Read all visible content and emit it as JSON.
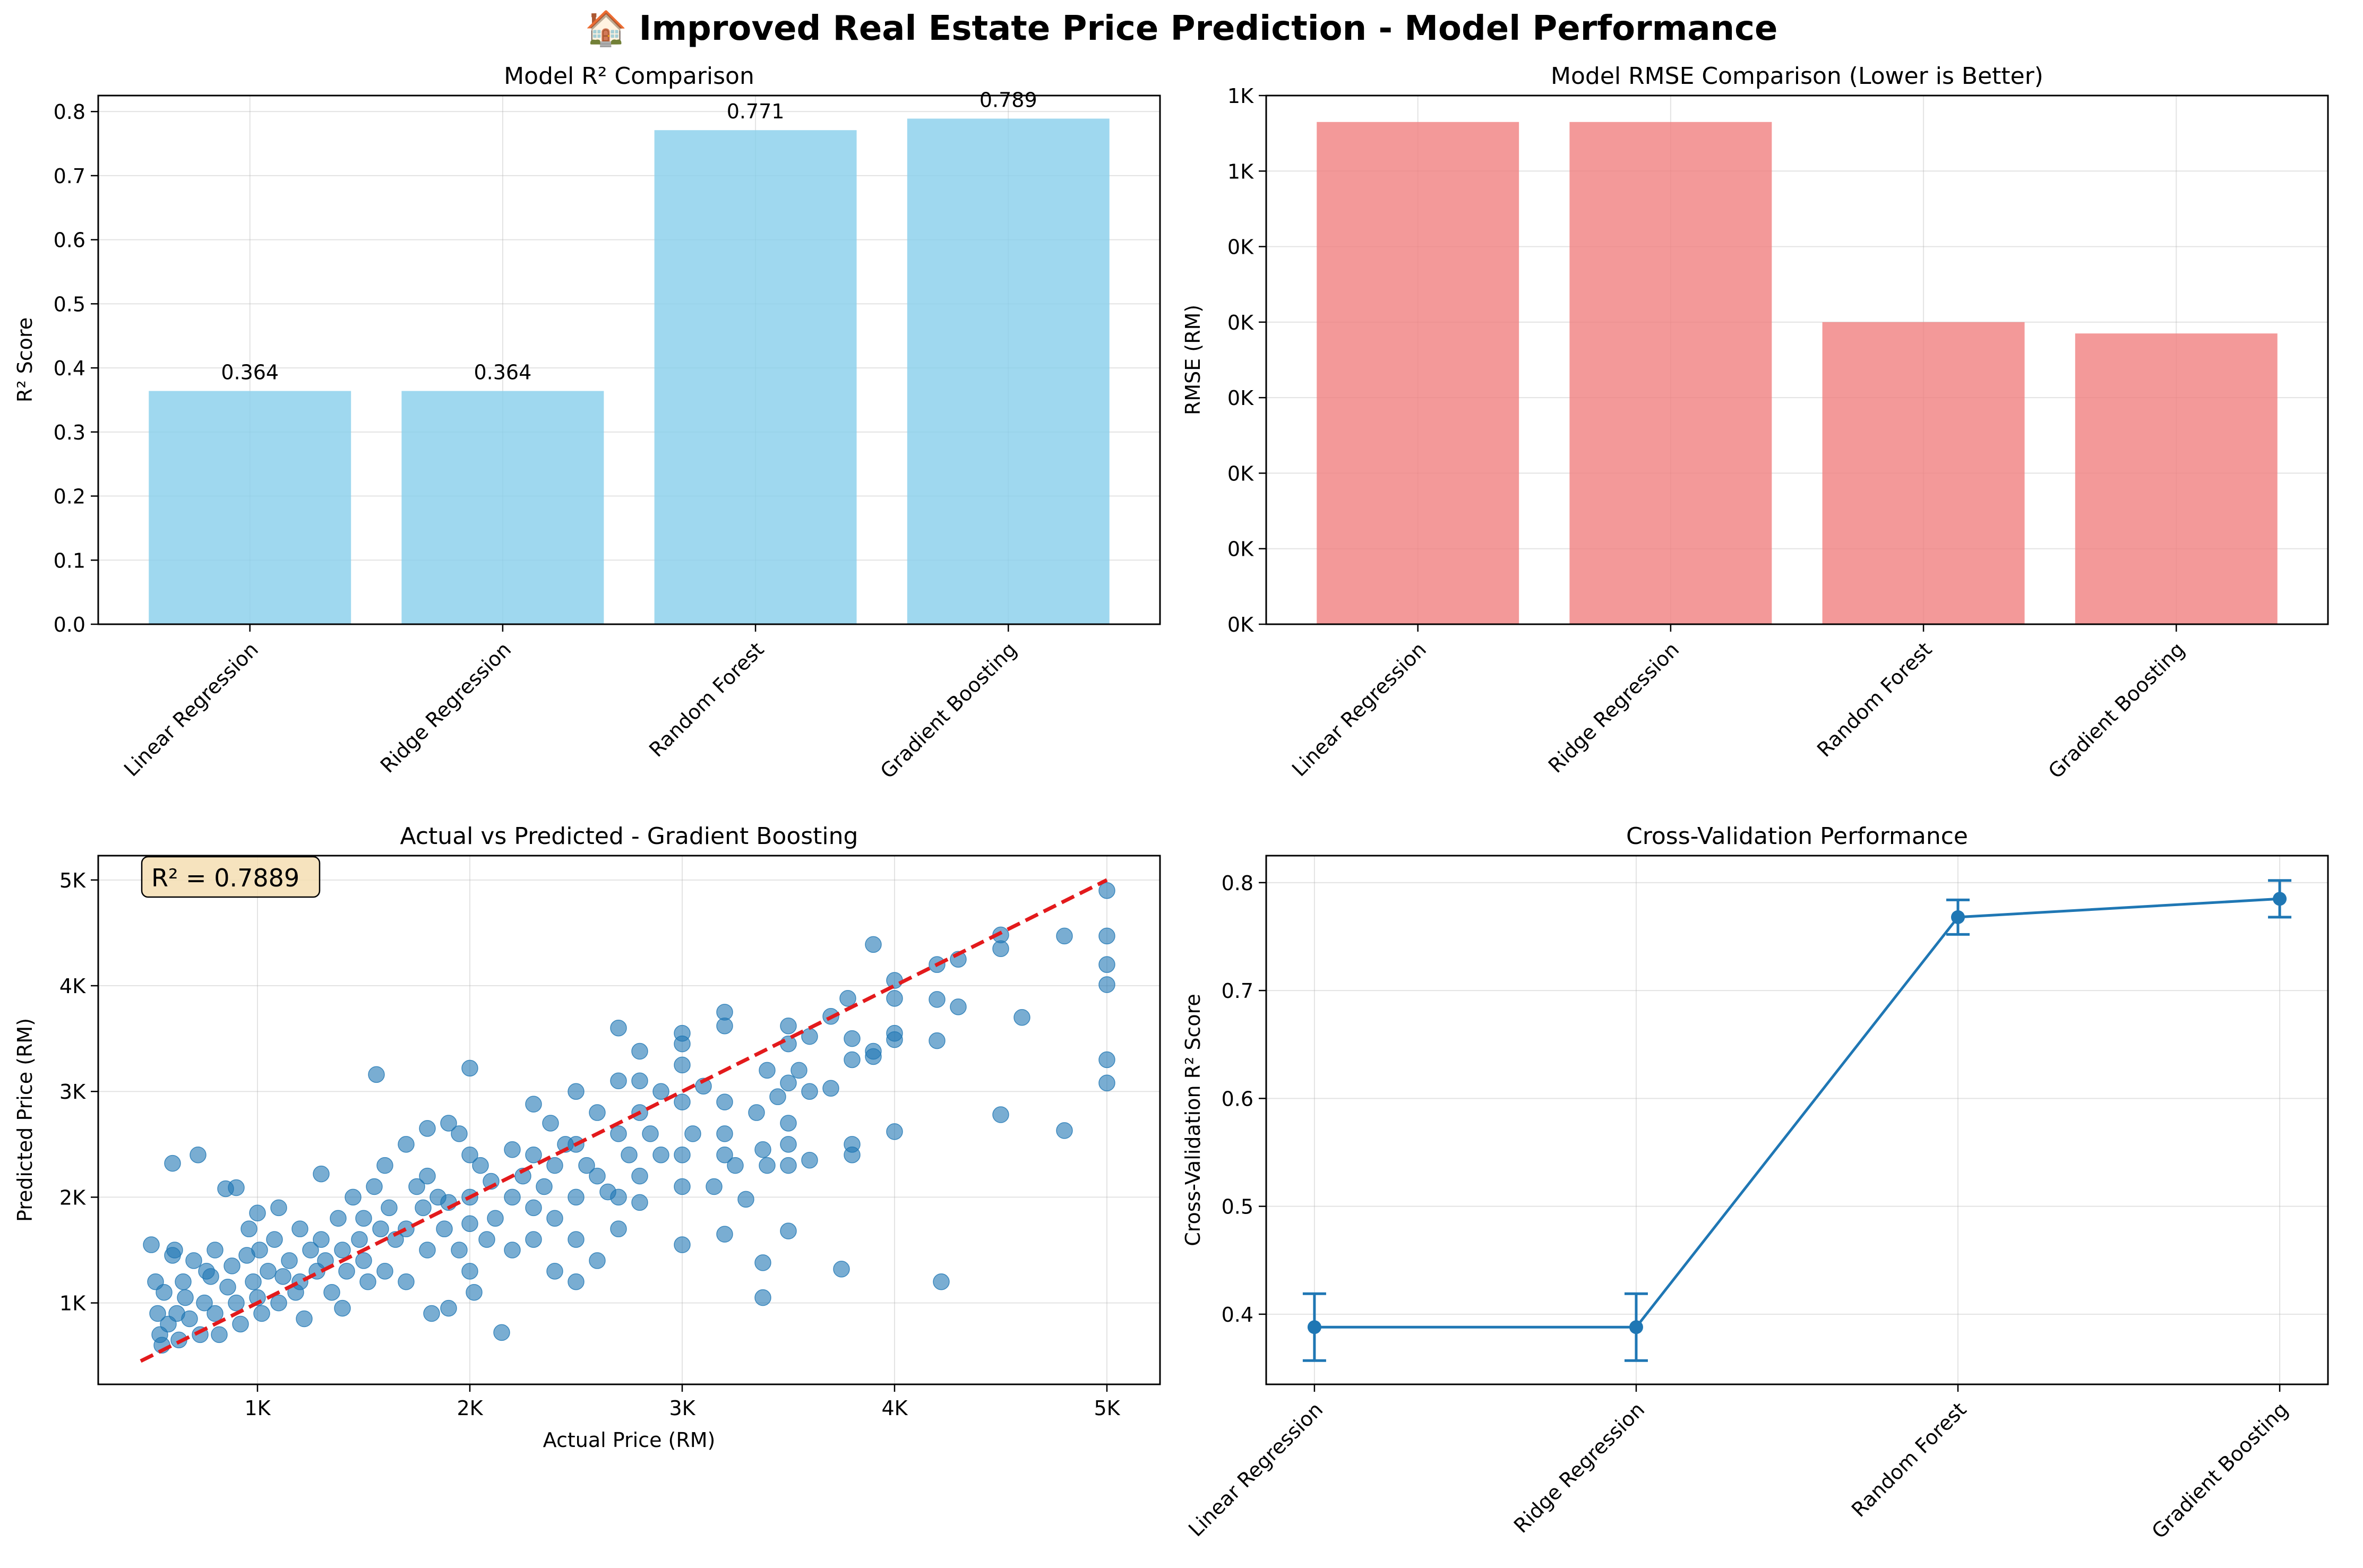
{
  "figure": {
    "title": "🏠 Improved Real Estate Price Prediction - Model Performance"
  },
  "colors": {
    "r2_bar": "#87CEEB",
    "rmse_bar": "#F08080",
    "scatter": "#1f77b4",
    "ideal_line": "#e31a1c",
    "cv_line": "#1f77b4",
    "annotation_box": "#F5DEB3",
    "grid": "#b0b0b0"
  },
  "chart_data": [
    {
      "id": "r2",
      "type": "bar",
      "title": "Model R² Comparison",
      "xlabel": "",
      "ylabel": "R² Score",
      "categories": [
        "Linear Regression",
        "Ridge Regression",
        "Random Forest",
        "Gradient Boosting"
      ],
      "values": [
        0.364,
        0.364,
        0.771,
        0.789
      ],
      "value_labels": [
        "0.364",
        "0.364",
        "0.771",
        "0.789"
      ],
      "ylim": [
        0,
        0.825
      ],
      "yticks": [
        0.0,
        0.1,
        0.2,
        0.3,
        0.4,
        0.5,
        0.6,
        0.7,
        0.8
      ],
      "ytick_labels": [
        "0.0",
        "0.1",
        "0.2",
        "0.3",
        "0.4",
        "0.5",
        "0.6",
        "0.7",
        "0.8"
      ],
      "grid": true
    },
    {
      "id": "rmse",
      "type": "bar",
      "title": "Model RMSE Comparison (Lower is Better)",
      "xlabel": "",
      "ylabel": "RMSE (RM)",
      "categories": [
        "Linear Regression",
        "Ridge Regression",
        "Random Forest",
        "Gradient Boosting"
      ],
      "values": [
        665,
        665,
        400,
        385
      ],
      "ylim": [
        0,
        700
      ],
      "yticks": [
        0,
        100,
        200,
        300,
        400,
        500,
        600,
        700
      ],
      "ytick_labels": [
        "0K",
        "0K",
        "0K",
        "0K",
        "0K",
        "0K",
        "1K",
        "1K"
      ],
      "grid": true
    },
    {
      "id": "scatter",
      "type": "scatter",
      "title": "Actual vs Predicted - Gradient Boosting",
      "xlabel": "Actual Price (RM)",
      "ylabel": "Predicted Price (RM)",
      "xlim": [
        250,
        5250
      ],
      "ylim": [
        230,
        5230
      ],
      "xticks": [
        1000,
        2000,
        3000,
        4000,
        5000
      ],
      "xtick_labels": [
        "1K",
        "2K",
        "3K",
        "4K",
        "5K"
      ],
      "yticks": [
        1000,
        2000,
        3000,
        4000,
        5000
      ],
      "ytick_labels": [
        "1K",
        "2K",
        "3K",
        "4K",
        "5K"
      ],
      "ideal_line": [
        [
          450,
          450
        ],
        [
          5000,
          5000
        ]
      ],
      "annotation": "R² = 0.7889",
      "grid": true,
      "points": [
        [
          500,
          1550
        ],
        [
          520,
          1200
        ],
        [
          530,
          900
        ],
        [
          540,
          700
        ],
        [
          550,
          600
        ],
        [
          560,
          1100
        ],
        [
          580,
          800
        ],
        [
          600,
          1450
        ],
        [
          600,
          2320
        ],
        [
          610,
          1500
        ],
        [
          620,
          900
        ],
        [
          630,
          650
        ],
        [
          650,
          1200
        ],
        [
          660,
          1050
        ],
        [
          680,
          850
        ],
        [
          700,
          1400
        ],
        [
          720,
          2400
        ],
        [
          730,
          700
        ],
        [
          750,
          1000
        ],
        [
          760,
          1300
        ],
        [
          780,
          1250
        ],
        [
          800,
          1500
        ],
        [
          800,
          900
        ],
        [
          820,
          700
        ],
        [
          850,
          2080
        ],
        [
          860,
          1150
        ],
        [
          880,
          1350
        ],
        [
          900,
          2090
        ],
        [
          900,
          1000
        ],
        [
          920,
          800
        ],
        [
          950,
          1450
        ],
        [
          960,
          1700
        ],
        [
          980,
          1200
        ],
        [
          1000,
          1850
        ],
        [
          1000,
          1050
        ],
        [
          1010,
          1500
        ],
        [
          1020,
          900
        ],
        [
          1050,
          1300
        ],
        [
          1080,
          1600
        ],
        [
          1100,
          1900
        ],
        [
          1100,
          1000
        ],
        [
          1120,
          1250
        ],
        [
          1150,
          1400
        ],
        [
          1180,
          1100
        ],
        [
          1200,
          1700
        ],
        [
          1200,
          1200
        ],
        [
          1220,
          850
        ],
        [
          1250,
          1500
        ],
        [
          1280,
          1300
        ],
        [
          1300,
          2220
        ],
        [
          1300,
          1600
        ],
        [
          1320,
          1400
        ],
        [
          1350,
          1100
        ],
        [
          1380,
          1800
        ],
        [
          1400,
          1500
        ],
        [
          1400,
          950
        ],
        [
          1420,
          1300
        ],
        [
          1450,
          2000
        ],
        [
          1480,
          1600
        ],
        [
          1500,
          1800
        ],
        [
          1500,
          1400
        ],
        [
          1520,
          1200
        ],
        [
          1550,
          2100
        ],
        [
          1560,
          3160
        ],
        [
          1580,
          1700
        ],
        [
          1600,
          2300
        ],
        [
          1600,
          1300
        ],
        [
          1620,
          1900
        ],
        [
          1650,
          1600
        ],
        [
          1700,
          2500
        ],
        [
          1700,
          1700
        ],
        [
          1700,
          1200
        ],
        [
          1750,
          2100
        ],
        [
          1780,
          1900
        ],
        [
          1800,
          2650
        ],
        [
          1800,
          2200
        ],
        [
          1800,
          1500
        ],
        [
          1820,
          900
        ],
        [
          1850,
          2000
        ],
        [
          1880,
          1700
        ],
        [
          1900,
          2700
        ],
        [
          1900,
          1950
        ],
        [
          1900,
          950
        ],
        [
          1950,
          2600
        ],
        [
          1950,
          1500
        ],
        [
          2000,
          3220
        ],
        [
          2000,
          2400
        ],
        [
          2000,
          2000
        ],
        [
          2000,
          1750
        ],
        [
          2000,
          1300
        ],
        [
          2020,
          1100
        ],
        [
          2050,
          2300
        ],
        [
          2080,
          1600
        ],
        [
          2100,
          2150
        ],
        [
          2120,
          1800
        ],
        [
          2150,
          720
        ],
        [
          2200,
          2450
        ],
        [
          2200,
          2000
        ],
        [
          2200,
          1500
        ],
        [
          2250,
          2200
        ],
        [
          2300,
          2880
        ],
        [
          2300,
          2400
        ],
        [
          2300,
          1900
        ],
        [
          2300,
          1600
        ],
        [
          2350,
          2100
        ],
        [
          2380,
          2700
        ],
        [
          2400,
          2300
        ],
        [
          2400,
          1800
        ],
        [
          2400,
          1300
        ],
        [
          2450,
          2500
        ],
        [
          2500,
          3000
        ],
        [
          2500,
          2500
        ],
        [
          2500,
          2000
        ],
        [
          2500,
          1600
        ],
        [
          2500,
          1200
        ],
        [
          2550,
          2300
        ],
        [
          2600,
          2800
        ],
        [
          2600,
          2200
        ],
        [
          2600,
          1400
        ],
        [
          2650,
          2050
        ],
        [
          2700,
          3600
        ],
        [
          2700,
          3100
        ],
        [
          2700,
          2600
        ],
        [
          2700,
          2000
        ],
        [
          2700,
          1700
        ],
        [
          2750,
          2400
        ],
        [
          2800,
          3380
        ],
        [
          2800,
          3100
        ],
        [
          2800,
          2800
        ],
        [
          2800,
          2200
        ],
        [
          2800,
          1950
        ],
        [
          2850,
          2600
        ],
        [
          2900,
          3000
        ],
        [
          2900,
          2400
        ],
        [
          3000,
          3550
        ],
        [
          3000,
          3450
        ],
        [
          3000,
          3250
        ],
        [
          3000,
          2900
        ],
        [
          3000,
          2400
        ],
        [
          3000,
          2100
        ],
        [
          3000,
          1550
        ],
        [
          3050,
          2600
        ],
        [
          3100,
          3050
        ],
        [
          3150,
          2100
        ],
        [
          3200,
          3750
        ],
        [
          3200,
          3620
        ],
        [
          3200,
          2900
        ],
        [
          3200,
          2600
        ],
        [
          3200,
          2400
        ],
        [
          3200,
          1650
        ],
        [
          3250,
          2300
        ],
        [
          3300,
          1980
        ],
        [
          3350,
          2800
        ],
        [
          3380,
          2450
        ],
        [
          3380,
          1380
        ],
        [
          3380,
          1050
        ],
        [
          3400,
          3200
        ],
        [
          3400,
          2300
        ],
        [
          3450,
          2950
        ],
        [
          3500,
          3620
        ],
        [
          3500,
          3450
        ],
        [
          3500,
          3080
        ],
        [
          3500,
          2700
        ],
        [
          3500,
          2500
        ],
        [
          3500,
          2300
        ],
        [
          3500,
          1680
        ],
        [
          3550,
          3200
        ],
        [
          3600,
          3520
        ],
        [
          3600,
          3000
        ],
        [
          3600,
          2350
        ],
        [
          3700,
          3710
        ],
        [
          3700,
          3030
        ],
        [
          3750,
          1320
        ],
        [
          3780,
          3880
        ],
        [
          3800,
          3500
        ],
        [
          3800,
          3300
        ],
        [
          3800,
          2500
        ],
        [
          3800,
          2400
        ],
        [
          3900,
          4390
        ],
        [
          3900,
          3380
        ],
        [
          3900,
          3330
        ],
        [
          4000,
          4050
        ],
        [
          4000,
          3880
        ],
        [
          4000,
          3550
        ],
        [
          4000,
          3490
        ],
        [
          4000,
          2620
        ],
        [
          4200,
          4200
        ],
        [
          4200,
          3870
        ],
        [
          4200,
          3480
        ],
        [
          4220,
          1200
        ],
        [
          4300,
          4250
        ],
        [
          4300,
          3800
        ],
        [
          4500,
          4480
        ],
        [
          4500,
          4350
        ],
        [
          4500,
          2780
        ],
        [
          4600,
          3700
        ],
        [
          4800,
          4470
        ],
        [
          4800,
          2630
        ],
        [
          5000,
          4900
        ],
        [
          5000,
          4470
        ],
        [
          5000,
          4200
        ],
        [
          5000,
          4010
        ],
        [
          5000,
          3300
        ],
        [
          5000,
          3080
        ]
      ]
    },
    {
      "id": "cv",
      "type": "line",
      "title": "Cross-Validation Performance",
      "xlabel": "",
      "ylabel": "Cross-Validation R² Score",
      "categories": [
        "Linear Regression",
        "Ridge Regression",
        "Random Forest",
        "Gradient Boosting"
      ],
      "values": [
        0.388,
        0.388,
        0.768,
        0.785
      ],
      "errors": [
        0.031,
        0.031,
        0.016,
        0.017
      ],
      "ylim": [
        0.335,
        0.825
      ],
      "yticks": [
        0.4,
        0.5,
        0.6,
        0.7,
        0.8
      ],
      "ytick_labels": [
        "0.4",
        "0.5",
        "0.6",
        "0.7",
        "0.8"
      ],
      "grid": true
    }
  ]
}
